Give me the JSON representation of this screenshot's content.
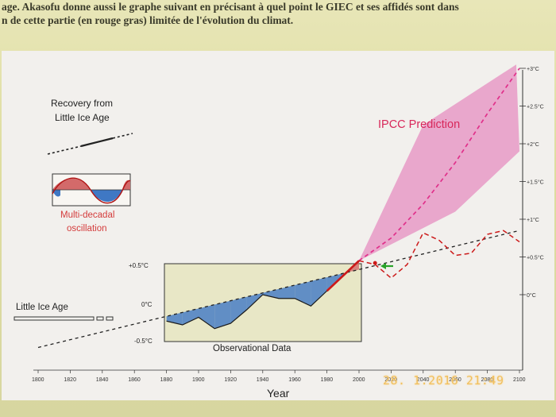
{
  "caption": {
    "line1": "age. Akasofu donne aussi le graphe suivant en précisant à quel point le GIEC et ses affidés sont dans",
    "line2": "n de cette partie (en rouge gras) limitée de l'évolution du climat."
  },
  "legend": {
    "recovery_line1": "Recovery from",
    "recovery_line2": "Little Ice Age",
    "oscillation_line1": "Multi-decadal",
    "oscillation_line2": "oscillation",
    "little_ice_age": "Little Ice Age"
  },
  "inset": {
    "title": "Observational Data",
    "y_ticks": [
      "+0.5°C",
      "0°C",
      "-0.5°C"
    ]
  },
  "ipcc_label": "IPCC Prediction",
  "timestamp": "28. 1.2016 21:49",
  "colors": {
    "ipcc": "#e0308a",
    "ipcc_band": "#e79ac6",
    "observed": "#cc1a1a",
    "warm_fill": "#d36a6a",
    "cool_fill": "#3f78c4",
    "inset_bg": "#e8e7c6"
  },
  "chart_data": {
    "type": "line",
    "title": "",
    "xlabel": "Year",
    "ylabel": "",
    "x_ticks": [
      "1800",
      "1820",
      "1840",
      "1860",
      "1880",
      "1900",
      "1920",
      "1940",
      "1960",
      "1980",
      "2000",
      "2020",
      "2040",
      "2060",
      "2080",
      "2100"
    ],
    "y_ticks_right": [
      "+3°C",
      "+2.5°C",
      "+2°C",
      "+1.5°C",
      "+1°C",
      "+0.5°C",
      "0°C"
    ],
    "xlim": [
      1800,
      2100
    ],
    "ylim": [
      -0.5,
      3.0
    ],
    "series": [
      {
        "name": "Recovery from Little Ice Age",
        "style": "dashed",
        "x": [
          1800,
          2100
        ],
        "y": [
          -0.7,
          0.85
        ]
      },
      {
        "name": "IPCC Prediction",
        "style": "dashed",
        "x": [
          2000,
          2020,
          2040,
          2060,
          2080,
          2100
        ],
        "y": [
          0.45,
          0.75,
          1.2,
          1.75,
          2.4,
          3.0
        ]
      },
      {
        "name": "Multi-decadal oscillation",
        "style": "dashed",
        "x": [
          2000,
          2010,
          2020,
          2030,
          2040,
          2050,
          2060,
          2070,
          2080,
          2090,
          2100
        ],
        "y": [
          0.45,
          0.4,
          0.22,
          0.4,
          0.82,
          0.72,
          0.52,
          0.55,
          0.8,
          0.85,
          0.7
        ]
      },
      {
        "name": "Observational Data",
        "style": "solid",
        "x": [
          1880,
          1890,
          1900,
          1910,
          1920,
          1930,
          1940,
          1950,
          1960,
          1970,
          1980,
          1990,
          2000
        ],
        "y": [
          -0.35,
          -0.4,
          -0.3,
          -0.45,
          -0.38,
          -0.2,
          0.0,
          -0.05,
          -0.05,
          -0.15,
          0.05,
          0.25,
          0.45
        ]
      }
    ]
  }
}
